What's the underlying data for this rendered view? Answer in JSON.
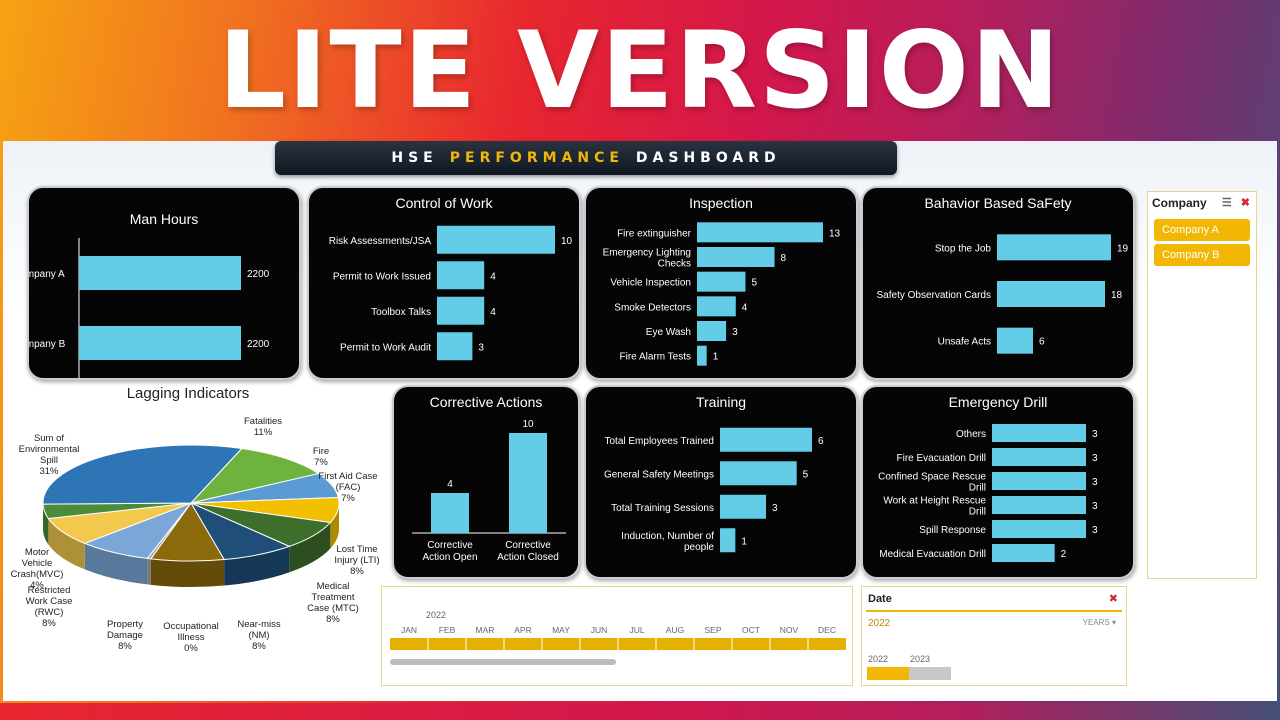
{
  "hero": {
    "title": "LITE VERSION"
  },
  "banner": {
    "left": "HSE",
    "accent": "PERFORMANCE",
    "right": "DASHBOARD"
  },
  "colors": {
    "bar": "#63cde8",
    "card_bg": "#050505",
    "accent": "#f2b705",
    "banner_bg": "#1a2330"
  },
  "chart_data": [
    {
      "id": "man-hours",
      "type": "bar",
      "orientation": "horizontal",
      "title": "Man Hours",
      "categories": [
        "Company A",
        "Company B"
      ],
      "values": [
        2200,
        2200
      ]
    },
    {
      "id": "control-of-work",
      "type": "bar",
      "orientation": "horizontal",
      "title": "Control of Work",
      "categories": [
        "Risk Assessments/JSA",
        "Permit to Work Issued",
        "Toolbox Talks",
        "Permit to Work Audit"
      ],
      "values": [
        10,
        4,
        4,
        3
      ]
    },
    {
      "id": "inspection",
      "type": "bar",
      "orientation": "horizontal",
      "title": "Inspection",
      "categories": [
        "Fire extinguisher",
        "Emergency Lighting Checks",
        "Vehicle Inspection",
        "Smoke Detectors",
        "Eye Wash",
        "Fire Alarm Tests"
      ],
      "values": [
        13,
        8,
        5,
        4,
        3,
        1
      ]
    },
    {
      "id": "bbs",
      "type": "bar",
      "orientation": "horizontal",
      "title": "Bahavior Based SaFety",
      "categories": [
        "Stop the Job",
        "Safety Observation Cards",
        "Unsafe Acts"
      ],
      "values": [
        19,
        18,
        6
      ]
    },
    {
      "id": "corrective-actions",
      "type": "bar",
      "orientation": "vertical",
      "title": "Corrective Actions",
      "categories": [
        "Corrective Action Open",
        "Corrective Action Closed"
      ],
      "values": [
        4,
        10
      ]
    },
    {
      "id": "training",
      "type": "bar",
      "orientation": "horizontal",
      "title": "Training",
      "categories": [
        "Total Employees Trained",
        "General Safety Meetings",
        "Total Training Sessions",
        "Induction, Number of people"
      ],
      "values": [
        6,
        5,
        3,
        1
      ]
    },
    {
      "id": "emergency-drill",
      "type": "bar",
      "orientation": "horizontal",
      "title": "Emergency Drill",
      "categories": [
        "Others",
        "Fire Evacuation Drill",
        "Confined Space Rescue Drill",
        "Work at Height Rescue Drill",
        "Spill Response",
        "Medical Evacuation Drill"
      ],
      "values": [
        3,
        3,
        3,
        3,
        3,
        2
      ]
    },
    {
      "id": "lagging-indicators",
      "type": "pie",
      "title": "Lagging Indicators",
      "slices": [
        {
          "label": "Fatalities",
          "percent": "11%",
          "value": 11,
          "color": "#6fb33f"
        },
        {
          "label": "Fire",
          "percent": "7%",
          "value": 7,
          "color": "#5b9bd5"
        },
        {
          "label": "First Aid Case (FAC)",
          "percent": "7%",
          "value": 7,
          "color": "#f2c000"
        },
        {
          "label": "Lost Time Injury (LTI)",
          "percent": "8%",
          "value": 8,
          "color": "#3e6e2b"
        },
        {
          "label": "Medical Treatment Case (MTC)",
          "percent": "8%",
          "value": 8,
          "color": "#1f4e79"
        },
        {
          "label": "Near-miss (NM)",
          "percent": "8%",
          "value": 8,
          "color": "#8a6a0a"
        },
        {
          "label": "Occupational Illness",
          "percent": "0%",
          "value": 0.4,
          "color": "#a5a5a5"
        },
        {
          "label": "Property Damage",
          "percent": "8%",
          "value": 8,
          "color": "#7aa7d8"
        },
        {
          "label": "Restricted Work Case (RWC)",
          "percent": "8%",
          "value": 8,
          "color": "#f2c94c"
        },
        {
          "label": "Motor Vehicle Crash(MVC)",
          "percent": "4%",
          "value": 4,
          "color": "#4a8c3a"
        },
        {
          "label": "Sum of Environmental Spill",
          "percent": "31%",
          "value": 31,
          "color": "#2e75b6"
        }
      ]
    }
  ],
  "pie_labels": [
    {
      "lines": [
        "Fatalities",
        "11%"
      ]
    },
    {
      "lines": [
        "Fire",
        "7%"
      ]
    },
    {
      "lines": [
        "First Aid Case",
        "(FAC)",
        "7%"
      ]
    },
    {
      "lines": [
        "Lost Time",
        "Injury (LTI)",
        "8%"
      ]
    },
    {
      "lines": [
        "Medical",
        "Treatment",
        "Case (MTC)",
        "8%"
      ]
    },
    {
      "lines": [
        "Near-miss",
        "(NM)",
        "8%"
      ]
    },
    {
      "lines": [
        "Occupational",
        "Illness",
        "0%"
      ]
    },
    {
      "lines": [
        "Property",
        "Damage",
        "8%"
      ]
    },
    {
      "lines": [
        "Restricted",
        "Work Case",
        "(RWC)",
        "8%"
      ]
    },
    {
      "lines": [
        "Motor",
        "Vehicle",
        "Crash(MVC)",
        "4%"
      ]
    },
    {
      "lines": [
        "Sum of",
        "Environmental",
        "Spill",
        "31%"
      ]
    }
  ],
  "slicer": {
    "title": "Company",
    "items": [
      "Company A",
      "Company B"
    ]
  },
  "timeline": {
    "year": "2022",
    "months": [
      "JAN",
      "FEB",
      "MAR",
      "APR",
      "MAY",
      "JUN",
      "JUL",
      "AUG",
      "SEP",
      "OCT",
      "NOV",
      "DEC"
    ]
  },
  "date_filter": {
    "title": "Date",
    "selected": "2022",
    "level": "YEARS",
    "years": [
      "2022",
      "2023"
    ],
    "active": "2022"
  }
}
